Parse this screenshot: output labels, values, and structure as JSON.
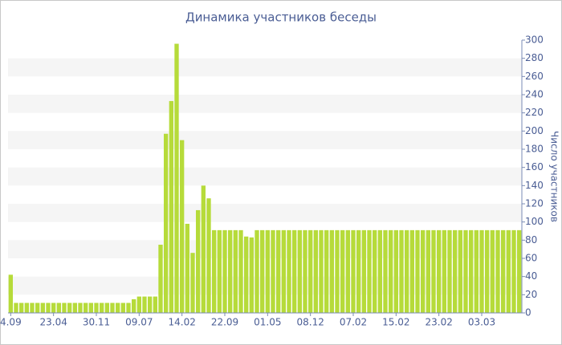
{
  "chart_data": {
    "type": "bar",
    "title": "Динамика участников беседы",
    "y_label": "Число участников",
    "categories": [
      "4.09",
      null,
      null,
      null,
      null,
      null,
      null,
      null,
      "23.04",
      null,
      null,
      null,
      null,
      null,
      null,
      null,
      "30.11",
      null,
      null,
      null,
      null,
      null,
      null,
      null,
      "09.07",
      null,
      null,
      null,
      null,
      null,
      null,
      null,
      "14.02",
      null,
      null,
      null,
      null,
      null,
      null,
      null,
      "22.09",
      null,
      null,
      null,
      null,
      null,
      null,
      null,
      "01.05",
      null,
      null,
      null,
      null,
      null,
      null,
      null,
      "08.12",
      null,
      null,
      null,
      null,
      null,
      null,
      null,
      "07.02",
      null,
      null,
      null,
      null,
      null,
      null,
      null,
      "15.02",
      null,
      null,
      null,
      null,
      null,
      null,
      null,
      "23.02",
      null,
      null,
      null,
      null,
      null,
      null,
      null,
      "03.03",
      null,
      null,
      null,
      null,
      null,
      null,
      null
    ],
    "values": [
      42,
      11,
      11,
      11,
      11,
      11,
      11,
      11,
      11,
      11,
      11,
      11,
      11,
      11,
      11,
      11,
      11,
      11,
      11,
      11,
      11,
      11,
      11,
      15,
      18,
      18,
      18,
      18,
      75,
      197,
      233,
      296,
      190,
      98,
      66,
      113,
      140,
      126,
      91,
      91,
      91,
      91,
      91,
      91,
      84,
      83,
      91,
      91,
      91,
      91,
      91,
      91,
      91,
      91,
      91,
      91,
      91,
      91,
      91,
      91,
      91,
      91,
      91,
      91,
      91,
      91,
      91,
      91,
      91,
      91,
      91,
      91,
      91,
      91,
      91,
      91,
      91,
      91,
      91,
      91,
      91,
      91,
      91,
      91,
      91,
      91,
      91,
      91,
      91,
      91,
      91,
      91,
      91,
      91,
      91,
      91
    ],
    "color": "#b6db3a",
    "ylim": [
      0,
      300
    ],
    "yticks": [
      0,
      20,
      40,
      60,
      80,
      100,
      120,
      140,
      160,
      180,
      200,
      220,
      240,
      260,
      280,
      300
    ],
    "y_axis_side": "right",
    "grid": "bands"
  }
}
